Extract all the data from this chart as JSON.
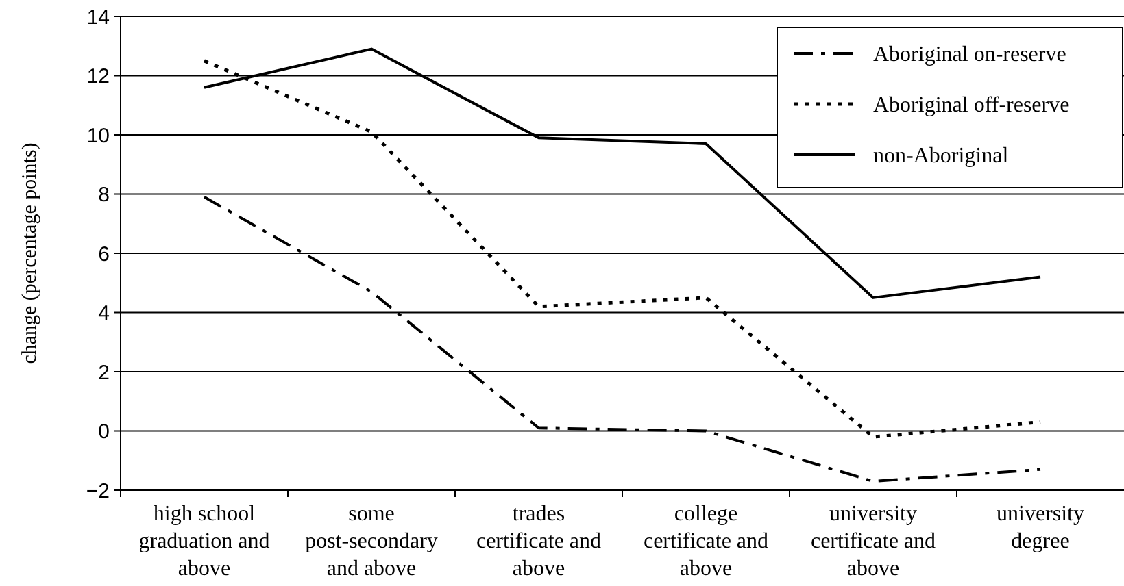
{
  "chart_data": {
    "type": "line",
    "ylabel": "change (percentage points)",
    "categories": [
      "high school graduation and above",
      "some post-secondary and above",
      "trades certificate and above",
      "college certificate and above",
      "university certificate and above",
      "university degree"
    ],
    "series": [
      {
        "name": "Aboriginal on-reserve",
        "color": "#000000",
        "line_style": "dashed",
        "values": [
          7.9,
          4.7,
          0.1,
          0.0,
          -1.7,
          -1.3
        ]
      },
      {
        "name": "Aboriginal off-reserve",
        "color": "#000000",
        "line_style": "dotted",
        "values": [
          12.5,
          10.1,
          4.2,
          4.5,
          -0.2,
          0.3
        ]
      },
      {
        "name": "non-Aboriginal",
        "color": "#000000",
        "line_style": "solid",
        "values": [
          11.6,
          12.9,
          9.9,
          9.7,
          4.5,
          5.2
        ]
      }
    ],
    "ylim": [
      -2,
      14
    ],
    "yticks": [
      {
        "value": -2,
        "label": "−2"
      },
      0,
      2,
      4,
      6,
      8,
      10,
      12,
      14
    ],
    "grid": "y",
    "legend": "top right",
    "marker": "none"
  }
}
